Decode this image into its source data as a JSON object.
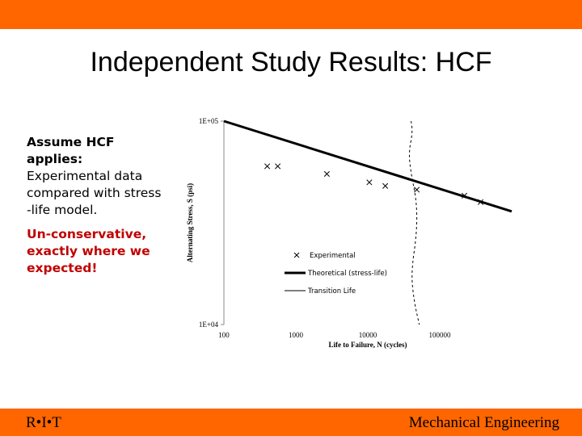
{
  "slide": {
    "title": "Independent Study Results: HCF",
    "body": {
      "line1_bold": "Assume HCF applies:",
      "line2": "Experimental data compared with stress -life model.",
      "conclusion": "Un-conservative, exactly where we expected!"
    },
    "footer_left": "R•I•T",
    "footer_right": "Mechanical Engineering"
  },
  "colors": {
    "accent": "#ff6600",
    "emphasis": "#c00000"
  },
  "chart_data": {
    "type": "scatter",
    "xlabel": "Life to Failure, N (cycles)",
    "ylabel": "Alternating Stress, S (psi)",
    "xscale": "log",
    "yscale": "log",
    "xlim": [
      100,
      1000000
    ],
    "ylim": [
      10000,
      100000
    ],
    "x_ticks": [
      100,
      1000,
      10000,
      100000
    ],
    "x_tick_labels": [
      "100",
      "1000",
      "10000",
      "100000"
    ],
    "y_tick_labels": [
      "1E+04",
      "1E+05"
    ],
    "y_ticks": [
      10000,
      100000
    ],
    "legend_placement": "center",
    "series": [
      {
        "name": "Experimental",
        "marker": "x",
        "points": [
          {
            "x": 400,
            "y": 60000
          },
          {
            "x": 560,
            "y": 60000
          },
          {
            "x": 2700,
            "y": 55000
          },
          {
            "x": 10500,
            "y": 50000
          },
          {
            "x": 17500,
            "y": 48000
          },
          {
            "x": 48000,
            "y": 46000
          },
          {
            "x": 220000,
            "y": 43000
          },
          {
            "x": 370000,
            "y": 40000
          }
        ]
      },
      {
        "name": "Theoretical (stress-life)",
        "line": [
          {
            "x": 100,
            "y": 100000
          },
          {
            "x": 1000000,
            "y": 36000
          }
        ]
      },
      {
        "name": "Transition Life",
        "style": "dashed",
        "points": [
          {
            "x": 40000,
            "y": 100000
          },
          {
            "x": 42000,
            "y": 88000
          },
          {
            "x": 37000,
            "y": 70000
          },
          {
            "x": 40000,
            "y": 55000
          },
          {
            "x": 48000,
            "y": 40000
          },
          {
            "x": 48000,
            "y": 28000
          },
          {
            "x": 40000,
            "y": 18000
          },
          {
            "x": 44000,
            "y": 13000
          },
          {
            "x": 52000,
            "y": 10000
          }
        ]
      }
    ]
  }
}
